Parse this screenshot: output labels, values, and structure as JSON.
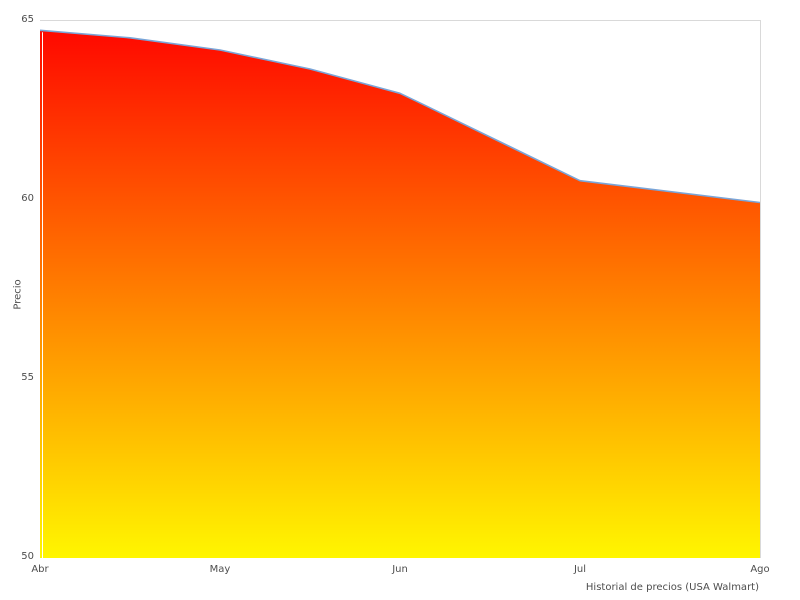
{
  "chart_data": {
    "type": "area",
    "title": "",
    "xlabel": "Historial de precios (USA Walmart)",
    "ylabel": "Precio",
    "categories": [
      "Abr",
      "May",
      "Jun",
      "Jul",
      "Ago"
    ],
    "series": [
      {
        "name": "Precio",
        "values": [
          64.7,
          64.2,
          63.0,
          60.5,
          59.9
        ]
      }
    ],
    "detail_points": [
      [
        0.0,
        64.74
      ],
      [
        0.5,
        64.53
      ],
      [
        1.0,
        64.19
      ],
      [
        1.5,
        63.66
      ],
      [
        2.0,
        62.98
      ],
      [
        2.12,
        62.69
      ],
      [
        3.0,
        60.54
      ],
      [
        4.0,
        59.93
      ]
    ],
    "ylim": [
      50,
      65
    ],
    "y_ticks": [
      65,
      60,
      55,
      50
    ],
    "grid": false,
    "legend": false,
    "colors": {
      "line": "#7aa5d8",
      "fill_top": "#ff0800",
      "fill_bottom": "#fff600",
      "plot_border": "#d9d9d9",
      "text": "#4d4d4d",
      "background": "#ffffff"
    }
  }
}
